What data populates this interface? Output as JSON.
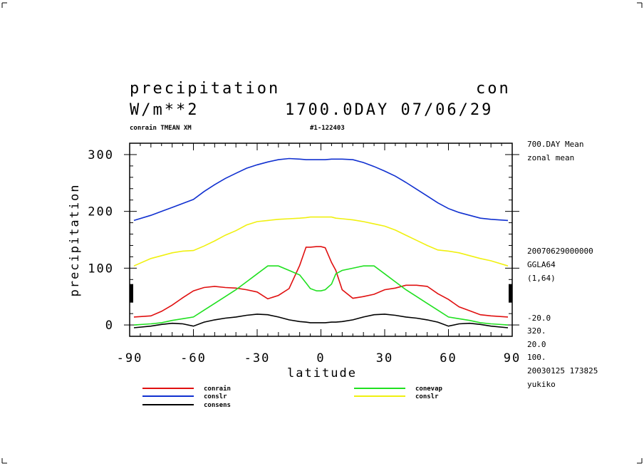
{
  "header": {
    "title": "precipitation",
    "code": "con",
    "units": "W/m**2",
    "time": "1700.0DAY 07/06/29",
    "subtitle_left": "conrain TMEAN XM",
    "subtitle_mid": "#1-122403"
  },
  "right_info": {
    "line1": "700.DAY Mean",
    "line2": "zonal mean",
    "line3": "20070629000000",
    "line4": "GGLA64",
    "line5": "(1,64)",
    "line6": "-20.0",
    "line7": "320.",
    "line8": "20.0",
    "line9": "100.",
    "line10": "20030125 173825",
    "line11": "yukiko"
  },
  "chart_data": {
    "type": "line",
    "xlabel": "latitude",
    "ylabel": "precipitation",
    "xlim": [
      -90,
      90
    ],
    "ylim": [
      -20,
      320
    ],
    "xticks": [
      "-90",
      "-60",
      "-30",
      "0",
      "30",
      "60",
      "90"
    ],
    "yticks": [
      "0",
      "100",
      "200",
      "300"
    ],
    "x": [
      -88,
      -80,
      -75,
      -70,
      -65,
      -60,
      -55,
      -50,
      -45,
      -40,
      -35,
      -30,
      -25,
      -20,
      -15,
      -10,
      -7,
      -5,
      -2,
      0,
      2,
      5,
      7,
      10,
      15,
      20,
      25,
      30,
      35,
      40,
      45,
      50,
      55,
      60,
      65,
      70,
      75,
      80,
      88
    ],
    "series": [
      {
        "name": "conrain",
        "color": "#e01010",
        "values": [
          14,
          16,
          24,
          35,
          48,
          60,
          66,
          68,
          66,
          65,
          62,
          58,
          46,
          52,
          64,
          105,
          137,
          137,
          138,
          138,
          136,
          110,
          96,
          62,
          47,
          50,
          54,
          62,
          65,
          70,
          70,
          68,
          55,
          45,
          32,
          25,
          18,
          16,
          14
        ]
      },
      {
        "name": "conevap",
        "color": "#20e020",
        "values": [
          0,
          2,
          4,
          8,
          11,
          14,
          26,
          38,
          50,
          62,
          76,
          90,
          104,
          104,
          96,
          88,
          74,
          64,
          60,
          60,
          62,
          72,
          90,
          96,
          100,
          104,
          104,
          90,
          76,
          62,
          50,
          38,
          26,
          14,
          11,
          8,
          4,
          2,
          0
        ]
      },
      {
        "name": "conslr",
        "color": "#1030d0",
        "values": [
          184,
          193,
          200,
          207,
          214,
          221,
          235,
          247,
          258,
          267,
          276,
          282,
          287,
          291,
          293,
          292,
          291,
          291,
          291,
          291,
          291,
          292,
          292,
          292,
          291,
          286,
          279,
          271,
          262,
          251,
          239,
          227,
          215,
          205,
          198,
          193,
          188,
          186,
          184
        ]
      },
      {
        "name": "conslr",
        "color": "#f0f010",
        "values": [
          104,
          117,
          122,
          127,
          130,
          131,
          139,
          148,
          158,
          166,
          176,
          182,
          184,
          186,
          187,
          188,
          189,
          190,
          190,
          190,
          190,
          190,
          188,
          187,
          185,
          182,
          178,
          174,
          167,
          158,
          149,
          140,
          132,
          130,
          127,
          122,
          117,
          113,
          104
        ]
      },
      {
        "name": "consens",
        "color": "#000000",
        "values": [
          -5,
          -2,
          1,
          3,
          2,
          -2,
          5,
          9,
          12,
          14,
          17,
          19,
          18,
          14,
          9,
          6,
          5,
          4,
          4,
          4,
          4,
          5,
          5,
          6,
          9,
          14,
          18,
          19,
          17,
          14,
          12,
          9,
          5,
          -2,
          2,
          3,
          1,
          -2,
          -5
        ]
      }
    ]
  },
  "legend": [
    {
      "label": "conrain",
      "color": "#e01010"
    },
    {
      "label": "conevap",
      "color": "#20e020"
    },
    {
      "label": "conslr",
      "color": "#1030d0"
    },
    {
      "label": "conslr",
      "color": "#f0f010"
    },
    {
      "label": "consens",
      "color": "#000000"
    }
  ]
}
